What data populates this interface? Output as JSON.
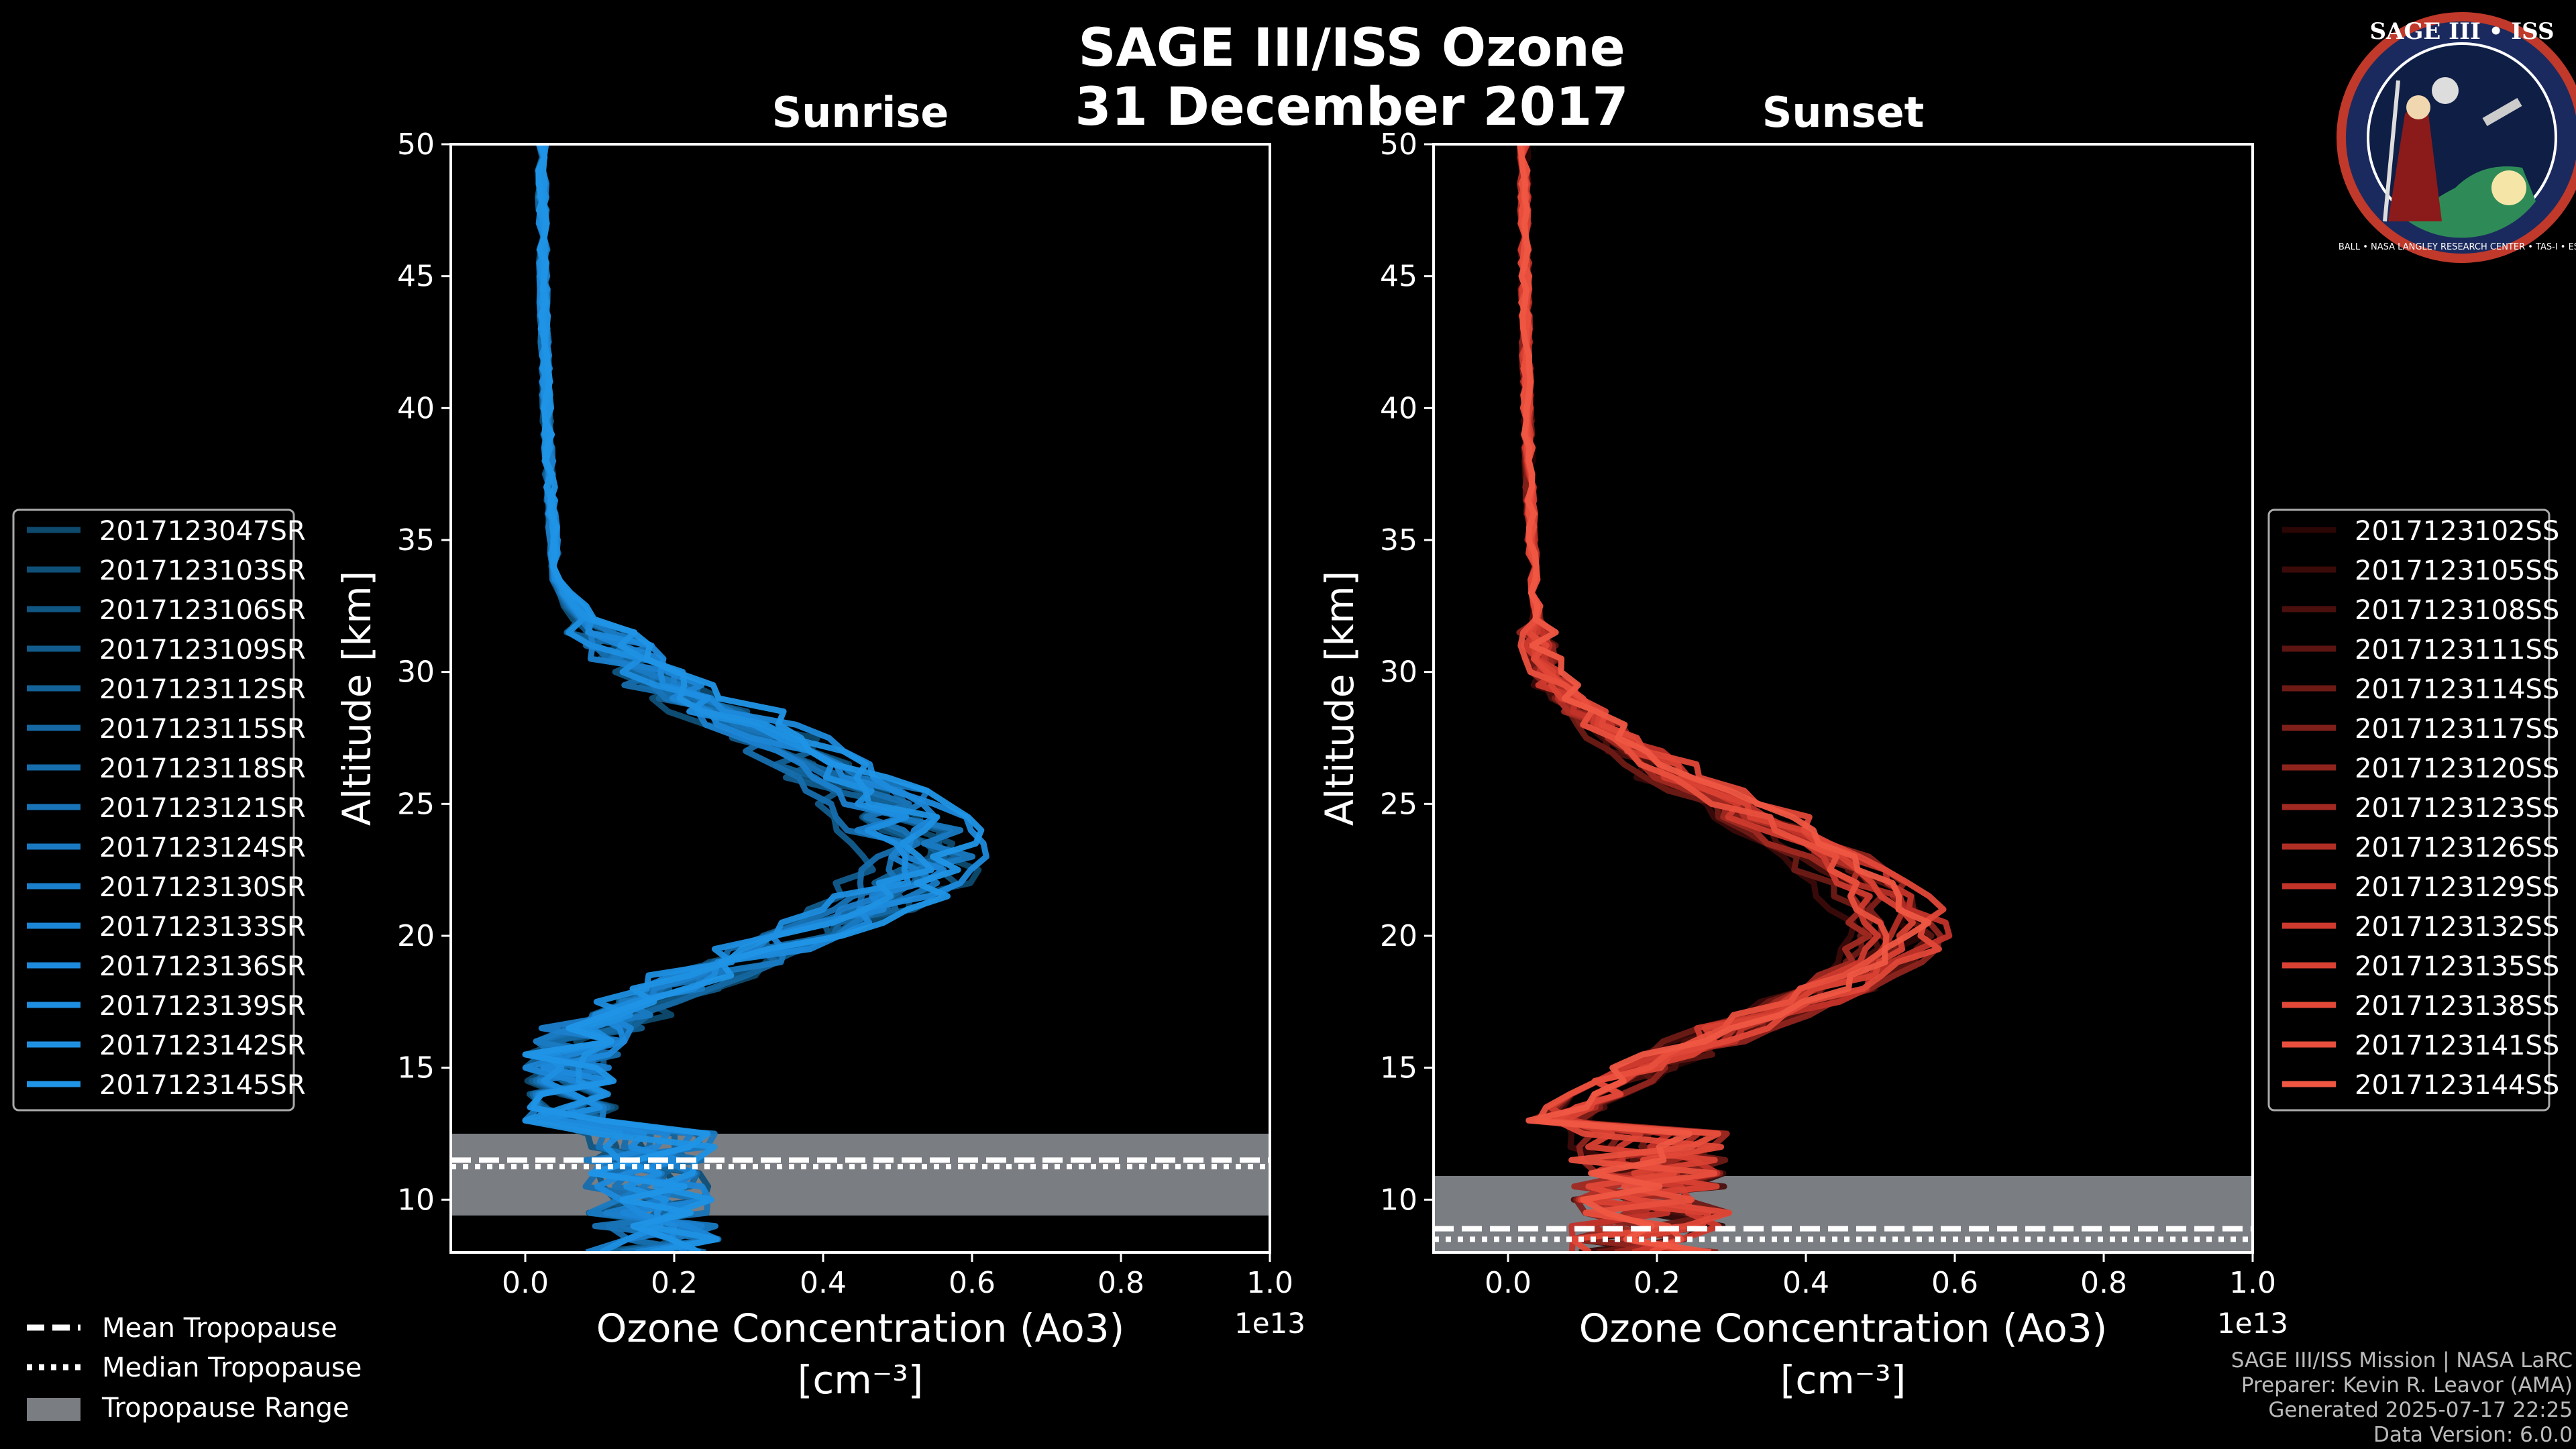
{
  "title": {
    "line1": "SAGE III/ISS Ozone",
    "line2": "31 December 2017"
  },
  "colors": {
    "background": "#000000",
    "sunrise_base": "#1a8fd0",
    "sunset_base": "#e8574a",
    "tropopause_range": "#7a7d82",
    "text": "#ffffff",
    "footer": "#bbbbbb"
  },
  "logo": {
    "text_top": "SAGE III • ISS",
    "text_bottom": "BALL • NASA LANGLEY RESEARCH CENTER • TAS-I • ESA"
  },
  "legend_bottom": {
    "mean": "Mean Tropopause",
    "median": "Median Tropopause",
    "range": "Tropopause Range"
  },
  "footer": {
    "line1": "SAGE III/ISS Mission | NASA LaRC",
    "line2": "Preparer: Kevin R. Leavor (AMA)",
    "line3": "Generated 2025-07-17 22:25",
    "line4": "Data Version: 6.0.0"
  },
  "chart_data": [
    {
      "type": "line",
      "title": "Sunrise",
      "xlabel": "Ozone Concentration (Ao3)",
      "xunit": "[cm⁻³]",
      "ylabel": "Altitude [km]",
      "xlim": [
        -0.1,
        1.0
      ],
      "ylim": [
        8,
        50
      ],
      "xticks": [
        "0.0",
        "0.2",
        "0.4",
        "0.6",
        "0.8",
        "1.0"
      ],
      "yticks": [
        "10",
        "15",
        "20",
        "25",
        "30",
        "35",
        "40",
        "45",
        "50"
      ],
      "x_multiplier": "1e13",
      "tropopause": {
        "mean": 11.5,
        "median": 11.25,
        "range": [
          9.4,
          12.5
        ]
      },
      "peak_altitude": 22.5,
      "peak_value": 0.53,
      "series_names": [
        "2017123047SR",
        "2017123103SR",
        "2017123106SR",
        "2017123109SR",
        "2017123112SR",
        "2017123115SR",
        "2017123118SR",
        "2017123121SR",
        "2017123124SR",
        "2017123130SR",
        "2017123133SR",
        "2017123136SR",
        "2017123139SR",
        "2017123142SR",
        "2017123145SR"
      ],
      "series_colors": [
        "#0d4a6e",
        "#0f5078",
        "#105683",
        "#125c8d",
        "#136298",
        "#1568a2",
        "#166ead",
        "#1874b7",
        "#197ac2",
        "#1b80cc",
        "#1c86d6",
        "#1d8adc",
        "#1e8ee0",
        "#1f91e3",
        "#2095e7"
      ]
    },
    {
      "type": "line",
      "title": "Sunset",
      "xlabel": "Ozone Concentration (Ao3)",
      "xunit": "[cm⁻³]",
      "ylabel": "Altitude [km]",
      "xlim": [
        -0.1,
        1.0
      ],
      "ylim": [
        8,
        50
      ],
      "xticks": [
        "0.0",
        "0.2",
        "0.4",
        "0.6",
        "0.8",
        "1.0"
      ],
      "yticks": [
        "10",
        "15",
        "20",
        "25",
        "30",
        "35",
        "40",
        "45",
        "50"
      ],
      "x_multiplier": "1e13",
      "tropopause": {
        "mean": 8.9,
        "median": 8.5,
        "range": [
          8.0,
          10.9
        ]
      },
      "peak_altitude": 21.0,
      "peak_value": 0.52,
      "series_names": [
        "2017123102SS",
        "2017123105SS",
        "2017123108SS",
        "2017123111SS",
        "2017123114SS",
        "2017123117SS",
        "2017123120SS",
        "2017123123SS",
        "2017123126SS",
        "2017123129SS",
        "2017123132SS",
        "2017123135SS",
        "2017123138SS",
        "2017123141SS",
        "2017123144SS"
      ],
      "series_colors": [
        "#2a0605",
        "#3a0b09",
        "#4b100d",
        "#5c1511",
        "#6d1a15",
        "#7e1f19",
        "#8f241d",
        "#a02921",
        "#b12e25",
        "#c23329",
        "#cf3a2e",
        "#d94133",
        "#e24838",
        "#e94f3d",
        "#ef5743"
      ]
    }
  ]
}
